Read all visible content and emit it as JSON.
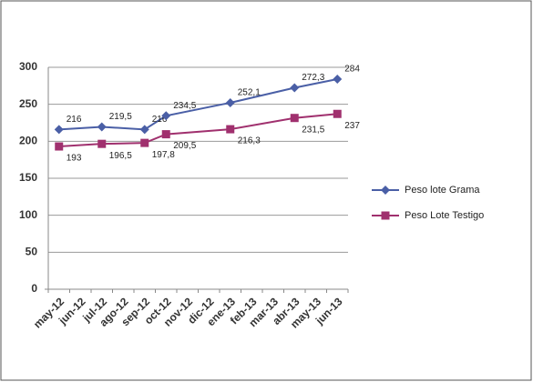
{
  "chart_data": {
    "type": "line",
    "categories": [
      "may-12",
      "jun-12",
      "jul-12",
      "ago-12",
      "sep-12",
      "oct-12",
      "nov-12",
      "dic-12",
      "ene-13",
      "feb-13",
      "mar-13",
      "abr-13",
      "may-13",
      "jun-13"
    ],
    "series": [
      {
        "name": "Peso lote Grama",
        "color": "#4a5fa6",
        "marker": "diamond",
        "x": [
          "may-12",
          "jul-12",
          "sep-12",
          "oct-12",
          "ene-13",
          "abr-13",
          "jun-13"
        ],
        "values": [
          216,
          219.5,
          216,
          234.5,
          252.1,
          272.3,
          284
        ],
        "value_labels": [
          "216",
          "219,5",
          "216",
          "234,5",
          "252,1",
          "272,3",
          "284"
        ]
      },
      {
        "name": "Peso Lote Testigo",
        "color": "#a0306e",
        "marker": "square",
        "x": [
          "may-12",
          "jul-12",
          "sep-12",
          "oct-12",
          "ene-13",
          "abr-13",
          "jun-13"
        ],
        "values": [
          193,
          196.5,
          197.8,
          209.5,
          216.3,
          231.5,
          237
        ],
        "value_labels": [
          "193",
          "196,5",
          "197,8",
          "209,5",
          "216,3",
          "231,5",
          "237"
        ]
      }
    ],
    "ylim": [
      0,
      300
    ],
    "yticks": [
      0,
      50,
      100,
      150,
      200,
      250,
      300
    ],
    "grid": true,
    "legend": "right"
  }
}
